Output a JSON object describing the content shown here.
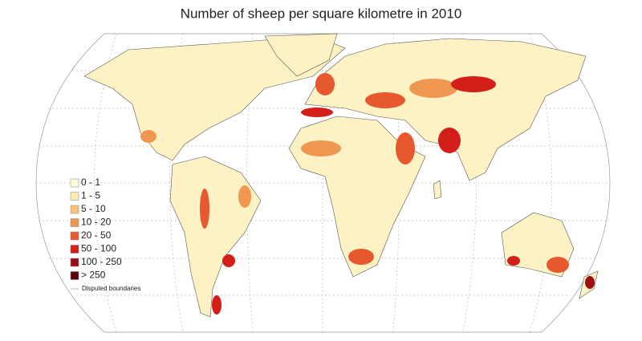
{
  "title": "Number of sheep per square kilometre in 2010",
  "legend": {
    "items": [
      {
        "label": "0 - 1",
        "color": "#fffdd8"
      },
      {
        "label": "1 - 5",
        "color": "#fbeab0"
      },
      {
        "label": "5 - 10",
        "color": "#f6c27a"
      },
      {
        "label": "10 - 20",
        "color": "#ef9650"
      },
      {
        "label": "20 - 50",
        "color": "#e8582e"
      },
      {
        "label": "50 - 100",
        "color": "#d41e1a"
      },
      {
        "label": "100 - 250",
        "color": "#9e0c14"
      },
      {
        "label": "> 250",
        "color": "#5a0208"
      }
    ],
    "disputed_label": "Disputed boundaries"
  }
}
